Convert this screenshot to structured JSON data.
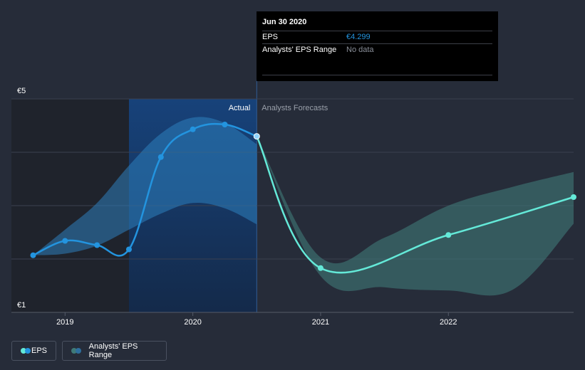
{
  "colors": {
    "background": "#262c39",
    "actual_line": "#2394df",
    "forecast_line": "#64e9d8",
    "actual_band": "#2e7fbd",
    "forecast_band": "#3f7a78",
    "highlight_panel": "#163560",
    "past_panel": "#1f232c"
  },
  "tooltip": {
    "date": "Jun 30 2020",
    "eps_label": "EPS",
    "eps_value": "€4.299",
    "range_label": "Analysts' EPS Range",
    "range_value": "No data"
  },
  "legend": {
    "eps_label": "EPS",
    "range_label": "Analysts' EPS Range"
  },
  "chart_data": {
    "type": "line",
    "title": "",
    "xlabel": "",
    "ylabel": "",
    "ylim": [
      1,
      5
    ],
    "y_ticks": [
      {
        "value": 5,
        "label": "€5"
      },
      {
        "value": 1,
        "label": "€1"
      }
    ],
    "x_ticks": [
      {
        "value": 2019.0,
        "label": "2019"
      },
      {
        "value": 2020.0,
        "label": "2020"
      },
      {
        "value": 2021.0,
        "label": "2021"
      },
      {
        "value": 2022.0,
        "label": "2022"
      }
    ],
    "xlim": [
      2018.58,
      2022.98
    ],
    "region_labels": {
      "actual": "Actual",
      "forecast": "Analysts Forecasts"
    },
    "divider_x": 2020.5,
    "series": [
      {
        "name": "EPS",
        "kind": "actual",
        "x": [
          2018.75,
          2019.0,
          2019.25,
          2019.5,
          2019.75,
          2020.0,
          2020.25,
          2020.5
        ],
        "y": [
          2.07,
          2.34,
          2.26,
          2.18,
          3.91,
          4.43,
          4.52,
          4.299
        ]
      },
      {
        "name": "EPS",
        "kind": "forecast",
        "x": [
          2020.5,
          2021.0,
          2022.0,
          2022.98
        ],
        "y": [
          4.299,
          1.83,
          2.45,
          3.16
        ]
      }
    ],
    "ranges": [
      {
        "kind": "actual",
        "x": [
          2018.75,
          2019.0,
          2019.25,
          2019.5,
          2019.75,
          2020.0,
          2020.25,
          2020.5
        ],
        "low": [
          2.07,
          2.1,
          2.25,
          2.55,
          2.85,
          3.05,
          2.95,
          2.65
        ],
        "high": [
          2.07,
          2.55,
          3.05,
          3.75,
          4.35,
          4.65,
          4.55,
          4.15
        ]
      },
      {
        "kind": "forecast",
        "x": [
          2020.5,
          2021.0,
          2021.5,
          2022.0,
          2022.5,
          2022.98
        ],
        "low": [
          4.299,
          1.68,
          1.47,
          1.41,
          1.42,
          2.66
        ],
        "high": [
          4.299,
          2.03,
          2.4,
          3.0,
          3.35,
          3.63
        ]
      }
    ]
  }
}
